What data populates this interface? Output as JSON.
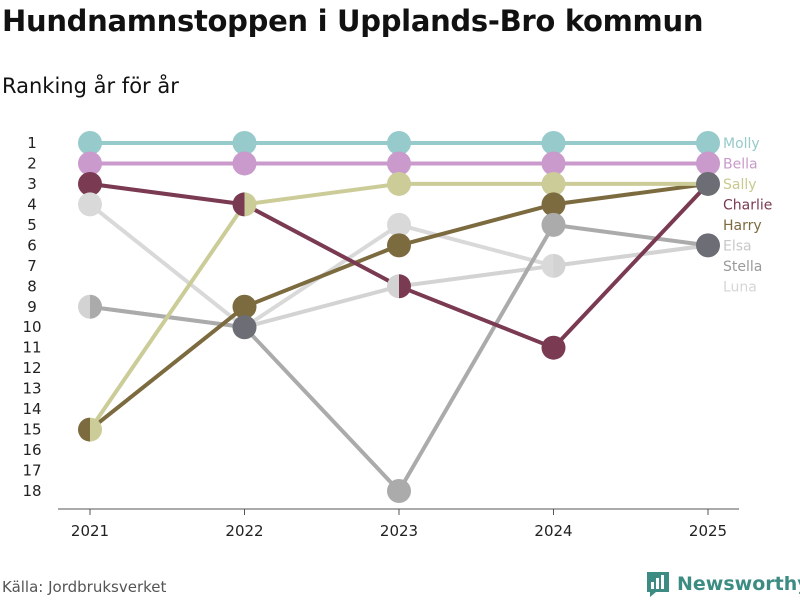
{
  "header": {
    "title": "Hundnamnstoppen i Upplands-Bro kommun",
    "subtitle": "Ranking år för år"
  },
  "footer": {
    "source": "Källa: Jordbruksverket",
    "brand": "Newsworthy",
    "brand_color": "#3d8c84"
  },
  "chart_data": {
    "type": "line",
    "title": "Hundnamnstoppen i Upplands-Bro kommun",
    "subtitle": "Ranking år för år",
    "xlabel": "",
    "ylabel": "",
    "x": [
      "2021",
      "2022",
      "2023",
      "2024",
      "2025"
    ],
    "y_ticks": [
      1,
      2,
      3,
      4,
      5,
      6,
      7,
      8,
      9,
      10,
      11,
      12,
      13,
      14,
      15,
      16,
      17,
      18
    ],
    "ylim": [
      1,
      18
    ],
    "y_inverted": true,
    "grid": false,
    "legend": "right end labels",
    "series": [
      {
        "name": "Luna",
        "color": "#d9d9d9",
        "values": [
          4,
          10,
          5,
          7,
          6
        ]
      },
      {
        "name": "Stella",
        "color": "#d3d3d3",
        "values": [
          9,
          10,
          8,
          7,
          6
        ]
      },
      {
        "name": "Elsa",
        "color": "#ababab",
        "values": [
          9,
          10,
          18,
          5,
          6
        ]
      },
      {
        "name": "Harry",
        "color": "#7d6b40",
        "values": [
          15,
          9,
          6,
          4,
          3
        ]
      },
      {
        "name": "Charlie",
        "color": "#7a3a52",
        "values": [
          3,
          4,
          8,
          11,
          3
        ]
      },
      {
        "name": "Sally",
        "color": "#cccc99",
        "values": [
          15,
          4,
          3,
          3,
          3
        ]
      },
      {
        "name": "Bella",
        "color": "#c99acb",
        "values": [
          2,
          2,
          2,
          2,
          2
        ]
      },
      {
        "name": "Molly",
        "color": "#96cacb",
        "values": [
          1,
          1,
          1,
          1,
          1
        ]
      }
    ],
    "end_labels": [
      {
        "name": "Molly",
        "color": "#96cacb"
      },
      {
        "name": "Bella",
        "color": "#c99acb"
      },
      {
        "name": "Sally",
        "color": "#c9c98f"
      },
      {
        "name": "Charlie",
        "color": "#7a3a52"
      },
      {
        "name": "Harry",
        "color": "#7d6b40"
      },
      {
        "name": "Elsa",
        "color": "#c8c8c8"
      },
      {
        "name": "Stella",
        "color": "#9a9a9a"
      },
      {
        "name": "Luna",
        "color": "#d6d6d6"
      }
    ],
    "overlap_marker_color": "#6d6d75"
  }
}
